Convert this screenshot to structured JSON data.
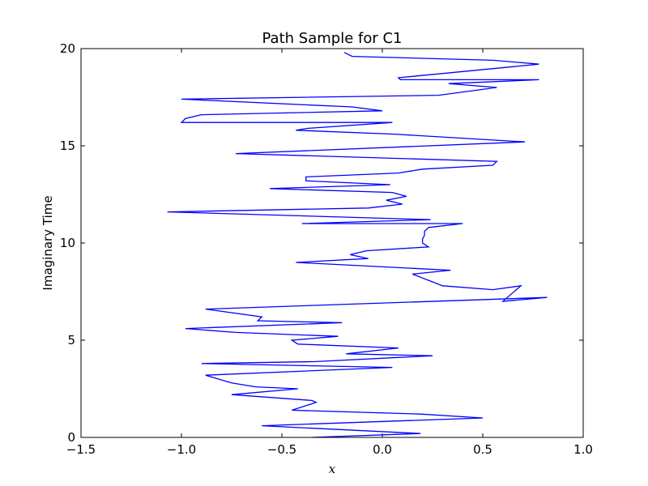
{
  "chart_data": {
    "type": "line",
    "title": "Path Sample for C1",
    "xlabel": "x",
    "ylabel": "Imaginary Time",
    "xlim": [
      -1.5,
      1.0
    ],
    "ylim": [
      0,
      20
    ],
    "xticks": [
      -1.5,
      -1.0,
      -0.5,
      0.0,
      0.5,
      1.0
    ],
    "xtick_labels": [
      "−1.5",
      "−1.0",
      "−0.5",
      "0.0",
      "0.5",
      "1.0"
    ],
    "yticks": [
      0,
      5,
      10,
      15,
      20
    ],
    "ytick_labels": [
      "0",
      "5",
      "10",
      "15",
      "20"
    ],
    "grid": false,
    "series": [
      {
        "color": "#0000ff",
        "x": [
          -0.35,
          0.19,
          -0.6,
          0.5,
          0.19,
          -0.45,
          -0.33,
          -0.35,
          -0.75,
          -0.42,
          -0.63,
          -0.75,
          -0.88,
          0.05,
          -0.9,
          -0.33,
          0.25,
          -0.18,
          0.08,
          -0.42,
          -0.45,
          -0.22,
          -0.73,
          -0.98,
          -0.2,
          -0.62,
          -0.6,
          -0.88,
          0.82,
          0.6,
          0.69,
          0.55,
          0.3,
          0.25,
          0.2,
          0.15,
          0.34,
          -0.43,
          -0.07,
          -0.16,
          -0.08,
          0.23,
          0.2,
          0.2,
          0.21,
          0.21,
          0.23,
          0.4,
          -0.4,
          0.24,
          -1.07,
          -0.07,
          0.1,
          0.02,
          0.12,
          0.05,
          -0.56,
          0.04,
          -0.38,
          -0.38,
          0.08,
          0.2,
          0.55,
          0.57,
          -0.73,
          0.71,
          0.06,
          -0.43,
          -0.37,
          0.05,
          -1.0,
          -0.98,
          -0.9,
          0.0,
          -0.15,
          -1.0,
          0.28,
          0.57,
          0.33,
          0.78,
          0.09,
          0.08,
          0.78,
          0.55,
          -0.15,
          -0.19
        ],
        "y": [
          0.0,
          0.2,
          0.6,
          1.0,
          1.2,
          1.4,
          1.8,
          1.9,
          2.2,
          2.5,
          2.6,
          2.8,
          3.2,
          3.6,
          3.8,
          3.9,
          4.2,
          4.3,
          4.6,
          4.8,
          5.0,
          5.2,
          5.4,
          5.6,
          5.9,
          6.0,
          6.2,
          6.6,
          7.2,
          7.0,
          7.8,
          7.6,
          7.8,
          8.0,
          8.2,
          8.4,
          8.6,
          9.0,
          9.2,
          9.4,
          9.6,
          9.8,
          10.0,
          10.2,
          10.4,
          10.6,
          10.8,
          11.0,
          11.0,
          11.2,
          11.6,
          11.8,
          12.0,
          12.2,
          12.4,
          12.6,
          12.8,
          13.0,
          13.2,
          13.4,
          13.6,
          13.8,
          14.0,
          14.2,
          14.6,
          15.2,
          15.6,
          15.8,
          15.9,
          16.2,
          16.2,
          16.4,
          16.6,
          16.8,
          17.0,
          17.4,
          17.6,
          18.0,
          18.2,
          18.4,
          18.4,
          18.5,
          19.2,
          19.4,
          19.6,
          19.8
        ]
      }
    ]
  }
}
